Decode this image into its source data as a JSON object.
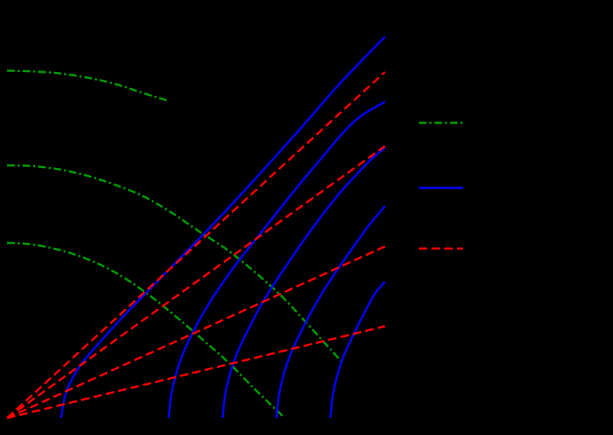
{
  "chart_data": {
    "type": "line",
    "background": "#000000",
    "axes_visible": false,
    "grid": false,
    "legend_position": "right",
    "xlim": [
      0,
      545
    ],
    "ylim": [
      0,
      592
    ],
    "series": [
      {
        "group": 0,
        "style": "dashdot",
        "color": "#00a000",
        "points": [
          [
            5,
            248
          ],
          [
            40,
            246
          ],
          [
            80,
            238
          ],
          [
            120,
            225
          ],
          [
            160,
            206
          ],
          [
            200,
            180
          ],
          [
            240,
            149
          ],
          [
            280,
            115
          ],
          [
            320,
            80
          ],
          [
            360,
            40
          ],
          [
            400,
            2
          ]
        ]
      },
      {
        "group": 0,
        "style": "dashdot",
        "color": "#00a000",
        "points": [
          [
            5,
            358
          ],
          [
            40,
            357
          ],
          [
            80,
            352
          ],
          [
            120,
            343
          ],
          [
            160,
            330
          ],
          [
            200,
            314
          ],
          [
            240,
            291
          ],
          [
            280,
            264
          ],
          [
            320,
            238
          ],
          [
            360,
            206
          ],
          [
            400,
            170
          ],
          [
            440,
            127
          ],
          [
            483,
            80
          ]
        ]
      },
      {
        "group": 0,
        "style": "dashdot",
        "color": "#00a000",
        "points": [
          [
            5,
            492
          ],
          [
            40,
            491
          ],
          [
            80,
            488
          ],
          [
            120,
            482
          ],
          [
            160,
            473
          ],
          [
            200,
            460
          ],
          [
            233,
            450
          ]
        ]
      },
      {
        "group": 1,
        "style": "solid",
        "color": "#0000ff",
        "points": [
          [
            82,
            0
          ],
          [
            90,
            38
          ],
          [
            110,
            75
          ],
          [
            140,
            110
          ],
          [
            180,
            153
          ],
          [
            240,
            214
          ],
          [
            300,
            275
          ],
          [
            360,
            339
          ],
          [
            420,
            405
          ],
          [
            480,
            473
          ],
          [
            545,
            540
          ]
        ]
      },
      {
        "group": 1,
        "style": "solid",
        "color": "#0000ff",
        "points": [
          [
            236,
            0
          ],
          [
            241,
            40
          ],
          [
            254,
            85
          ],
          [
            275,
            130
          ],
          [
            300,
            172
          ],
          [
            330,
            215
          ],
          [
            370,
            265
          ],
          [
            410,
            315
          ],
          [
            450,
            363
          ],
          [
            500,
            419
          ],
          [
            545,
            448
          ]
        ]
      },
      {
        "group": 1,
        "style": "solid",
        "color": "#0000ff",
        "points": [
          [
            313,
            0
          ],
          [
            318,
            40
          ],
          [
            331,
            85
          ],
          [
            352,
            130
          ],
          [
            377,
            175
          ],
          [
            407,
            220
          ],
          [
            440,
            267
          ],
          [
            480,
            318
          ],
          [
            520,
            361
          ],
          [
            545,
            383
          ]
        ]
      },
      {
        "group": 1,
        "style": "solid",
        "color": "#0000ff",
        "points": [
          [
            390,
            0
          ],
          [
            395,
            40
          ],
          [
            408,
            85
          ],
          [
            429,
            130
          ],
          [
            454,
            175
          ],
          [
            484,
            220
          ],
          [
            520,
            270
          ],
          [
            545,
            300
          ]
        ]
      },
      {
        "group": 1,
        "style": "solid",
        "color": "#0000ff",
        "points": [
          [
            467,
            0
          ],
          [
            472,
            40
          ],
          [
            485,
            85
          ],
          [
            506,
            130
          ],
          [
            530,
            175
          ],
          [
            545,
            193
          ]
        ]
      },
      {
        "group": 2,
        "style": "dashed",
        "color": "#ff0000",
        "points": [
          [
            5,
            0
          ],
          [
            545,
            490
          ]
        ]
      },
      {
        "group": 2,
        "style": "dashed",
        "color": "#ff0000",
        "points": [
          [
            5,
            0
          ],
          [
            545,
            385
          ]
        ]
      },
      {
        "group": 2,
        "style": "dashed",
        "color": "#ff0000",
        "points": [
          [
            5,
            0
          ],
          [
            545,
            243
          ]
        ]
      },
      {
        "group": 2,
        "style": "dashed",
        "color": "#ff0000",
        "points": [
          [
            5,
            0
          ],
          [
            545,
            130
          ]
        ]
      }
    ],
    "legend": [
      {
        "group": 0,
        "style": "dashdot",
        "color": "#00a000"
      },
      {
        "group": 1,
        "style": "solid",
        "color": "#0000ff"
      },
      {
        "group": 2,
        "style": "dashed",
        "color": "#ff0000"
      }
    ]
  }
}
